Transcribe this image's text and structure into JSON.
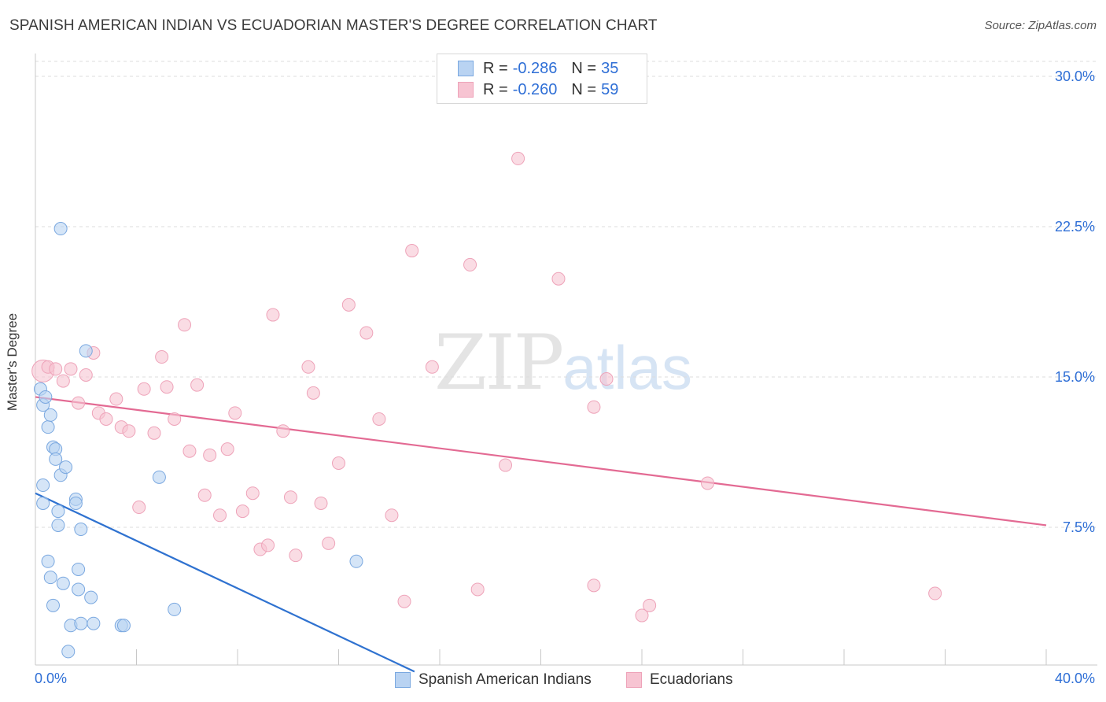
{
  "header": {
    "title": "SPANISH AMERICAN INDIAN VS ECUADORIAN MASTER'S DEGREE CORRELATION CHART",
    "source": "Source: ZipAtlas.com"
  },
  "watermark": {
    "zip": "ZIP",
    "atlas": "atlas"
  },
  "colors": {
    "blue_fill": "#b9d3f2",
    "blue_stroke": "#7aa8e0",
    "blue_line": "#2f72d0",
    "pink_fill": "#f7c4d2",
    "pink_stroke": "#eea3b9",
    "pink_line": "#e36a93",
    "grid": "#dcdcdc",
    "tick_text": "#2f6fd6"
  },
  "legend": {
    "r_label": "R =",
    "n_label": "N =",
    "rows": [
      {
        "r": "-0.286",
        "n": "35"
      },
      {
        "r": "-0.260",
        "n": "59"
      }
    ]
  },
  "chart_data": {
    "type": "scatter",
    "title": "SPANISH AMERICAN INDIAN VS ECUADORIAN MASTER'S DEGREE CORRELATION CHART",
    "xlabel": "",
    "ylabel": "Master's Degree",
    "xlim": [
      0,
      40
    ],
    "ylim": [
      0,
      31.5
    ],
    "x_tick_labels": [
      "0.0%",
      "40.0%"
    ],
    "y_ticks": [
      7.5,
      15.0,
      22.5,
      30.0
    ],
    "y_tick_labels": [
      "7.5%",
      "15.0%",
      "22.5%",
      "30.0%"
    ],
    "grid": true,
    "series": [
      {
        "name": "Spanish American Indians",
        "color": "blue",
        "r": -0.286,
        "n": 35,
        "trend": {
          "x0": 0.0,
          "y0": 9.2,
          "x1": 15.0,
          "y1": 0.3
        },
        "points": [
          [
            0.2,
            14.4
          ],
          [
            0.3,
            13.6
          ],
          [
            0.3,
            9.6
          ],
          [
            0.3,
            8.7
          ],
          [
            0.4,
            14.0
          ],
          [
            0.5,
            12.5
          ],
          [
            0.5,
            5.8
          ],
          [
            0.6,
            13.1
          ],
          [
            0.6,
            5.0
          ],
          [
            0.7,
            3.6
          ],
          [
            0.7,
            11.5
          ],
          [
            0.8,
            11.4
          ],
          [
            0.8,
            10.9
          ],
          [
            0.9,
            8.3
          ],
          [
            0.9,
            7.6
          ],
          [
            1.0,
            22.4
          ],
          [
            1.0,
            10.1
          ],
          [
            1.1,
            4.7
          ],
          [
            1.2,
            10.5
          ],
          [
            1.3,
            1.3
          ],
          [
            1.4,
            2.6
          ],
          [
            1.6,
            8.9
          ],
          [
            1.6,
            8.7
          ],
          [
            1.7,
            4.4
          ],
          [
            1.7,
            5.4
          ],
          [
            1.8,
            7.4
          ],
          [
            1.8,
            2.7
          ],
          [
            2.0,
            16.3
          ],
          [
            2.2,
            4.0
          ],
          [
            2.3,
            2.7
          ],
          [
            3.4,
            2.6
          ],
          [
            3.5,
            2.6
          ],
          [
            4.9,
            10.0
          ],
          [
            5.5,
            3.4
          ],
          [
            12.7,
            5.8
          ]
        ]
      },
      {
        "name": "Ecuadorians",
        "color": "pink",
        "r": -0.26,
        "n": 59,
        "trend": {
          "x0": 0.0,
          "y0": 14.0,
          "x1": 40.0,
          "y1": 7.6
        },
        "points": [
          [
            0.3,
            15.3
          ],
          [
            0.5,
            15.5
          ],
          [
            0.8,
            15.4
          ],
          [
            1.1,
            14.8
          ],
          [
            1.4,
            15.4
          ],
          [
            1.7,
            13.7
          ],
          [
            2.0,
            15.1
          ],
          [
            2.3,
            16.2
          ],
          [
            2.5,
            13.2
          ],
          [
            2.8,
            12.9
          ],
          [
            3.2,
            13.9
          ],
          [
            3.4,
            12.5
          ],
          [
            3.7,
            12.3
          ],
          [
            4.1,
            8.5
          ],
          [
            4.3,
            14.4
          ],
          [
            4.7,
            12.2
          ],
          [
            5.0,
            16.0
          ],
          [
            5.2,
            14.5
          ],
          [
            5.5,
            12.9
          ],
          [
            5.9,
            17.6
          ],
          [
            6.1,
            11.3
          ],
          [
            6.4,
            14.6
          ],
          [
            6.7,
            9.1
          ],
          [
            6.9,
            11.1
          ],
          [
            7.3,
            8.1
          ],
          [
            7.6,
            11.4
          ],
          [
            7.9,
            13.2
          ],
          [
            8.2,
            8.3
          ],
          [
            8.6,
            9.2
          ],
          [
            8.9,
            6.4
          ],
          [
            9.2,
            6.6
          ],
          [
            9.4,
            18.1
          ],
          [
            9.8,
            12.3
          ],
          [
            10.1,
            9.0
          ],
          [
            10.3,
            6.1
          ],
          [
            10.8,
            15.5
          ],
          [
            11.0,
            14.2
          ],
          [
            11.3,
            8.7
          ],
          [
            11.6,
            6.7
          ],
          [
            12.0,
            10.7
          ],
          [
            12.4,
            18.6
          ],
          [
            13.1,
            17.2
          ],
          [
            13.6,
            12.9
          ],
          [
            14.1,
            8.1
          ],
          [
            14.6,
            3.8
          ],
          [
            14.9,
            21.3
          ],
          [
            15.7,
            15.5
          ],
          [
            17.2,
            20.6
          ],
          [
            17.5,
            4.4
          ],
          [
            18.6,
            10.6
          ],
          [
            19.1,
            25.9
          ],
          [
            20.7,
            19.9
          ],
          [
            22.1,
            4.6
          ],
          [
            22.6,
            14.9
          ],
          [
            22.1,
            13.5
          ],
          [
            24.0,
            3.1
          ],
          [
            24.3,
            3.6
          ],
          [
            26.6,
            9.7
          ],
          [
            35.6,
            4.2
          ]
        ]
      }
    ]
  }
}
